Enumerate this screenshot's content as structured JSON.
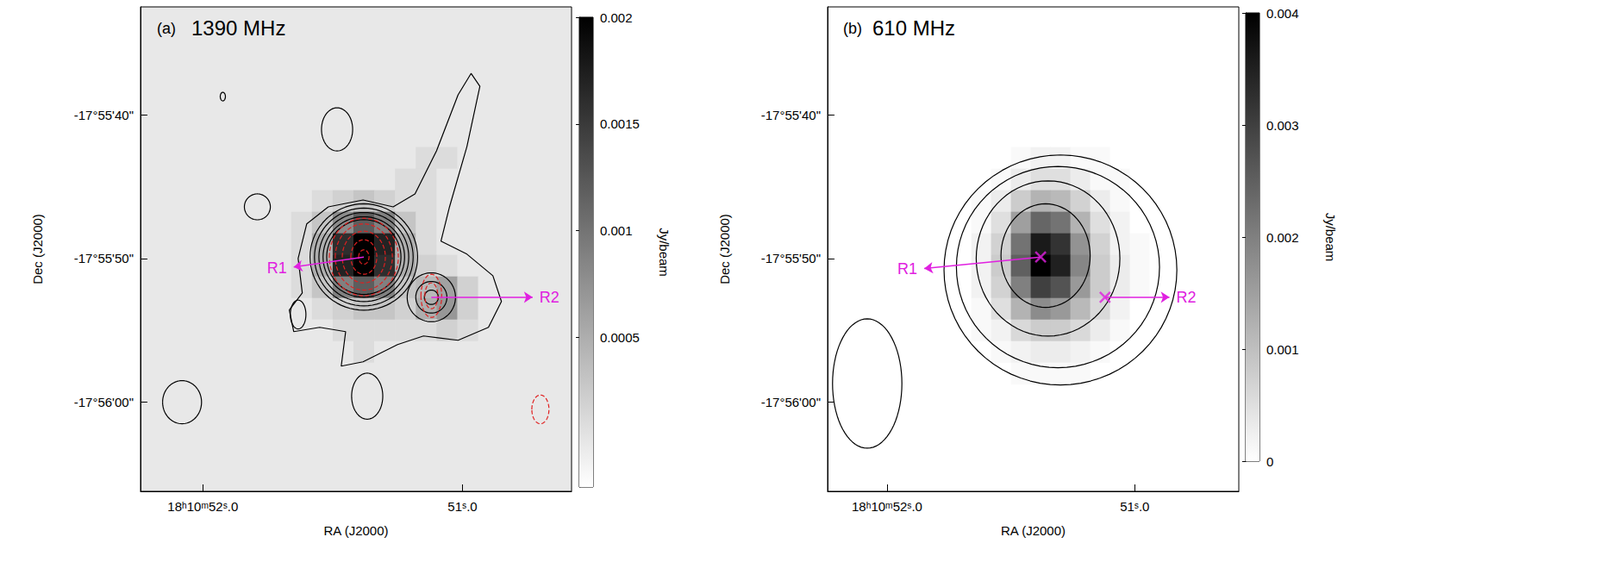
{
  "chart_data": [
    {
      "type": "contour",
      "panel_label": "(a)",
      "title": "1390 MHz",
      "x_label": "RA (J2000)",
      "y_label": "Dec (J2000)",
      "xlim": [
        52.24,
        50.58
      ],
      "xticks": [
        {
          "value": 52.0,
          "label": "18ʰ10ᵐ52ˢ.0"
        },
        {
          "value": 51.0,
          "label": "51ˢ.0"
        }
      ],
      "ylim": [
        -66.2,
        -32.5
      ],
      "yticks": [
        {
          "value": -40,
          "label": "-17°55'40\""
        },
        {
          "value": -50,
          "label": "-17°55'50\""
        },
        {
          "value": -60,
          "label": "-17°56'00\""
        }
      ],
      "image": {
        "ra": [
          51.7,
          51.62,
          51.54,
          51.46,
          51.38,
          51.3,
          51.22,
          51.14,
          51.06,
          50.98,
          50.9
        ],
        "dec": [
          -43,
          -44.5,
          -46,
          -47.5,
          -49,
          -50.5,
          -52,
          -53.5,
          -55,
          -56.5,
          -58
        ],
        "cell": [
          0.08,
          1.5
        ],
        "values": [
          [
            0,
            0,
            0,
            0,
            0,
            0,
            0,
            0.0001,
            0.0001,
            0,
            0
          ],
          [
            0,
            0,
            0,
            0,
            0,
            0,
            0.0001,
            0.0001,
            0,
            0,
            0
          ],
          [
            0,
            0,
            0.0001,
            0.0002,
            0.0003,
            0.0002,
            0.0001,
            0.0001,
            0,
            0,
            0
          ],
          [
            0,
            0.0001,
            0.0003,
            0.0008,
            0.0012,
            0.0009,
            0.0003,
            0.0001,
            0,
            0,
            0
          ],
          [
            0,
            0.0001,
            0.0005,
            0.0016,
            0.002,
            0.0017,
            0.0005,
            0.0001,
            0,
            0,
            0
          ],
          [
            0,
            0.0001,
            0.0005,
            0.0017,
            0.002,
            0.0016,
            0.0005,
            0.0002,
            0.0001,
            0,
            0
          ],
          [
            0,
            0.0001,
            0.0003,
            0.0009,
            0.0012,
            0.0009,
            0.0003,
            0.0004,
            0.0006,
            0.0002,
            0
          ],
          [
            0,
            0,
            0.0001,
            0.0002,
            0.0003,
            0.0003,
            0.0002,
            0.0005,
            0.0007,
            0.0002,
            0
          ],
          [
            0,
            0,
            0,
            0.0001,
            0.0001,
            0.0001,
            0.0001,
            0.0001,
            0.0002,
            0.0001,
            0
          ],
          [
            0,
            0,
            0,
            0,
            0.0001,
            0,
            0,
            0,
            0,
            0,
            0
          ],
          [
            0,
            0,
            0,
            0,
            0,
            0,
            0,
            0,
            0,
            0,
            0
          ]
        ]
      },
      "colorbar": {
        "label": "Jy/beam",
        "range": [
          -0.0002,
          0.002
        ],
        "ticks": [
          0.0005,
          0.001,
          0.0015,
          0.002
        ]
      },
      "contours": [
        {
          "color": "#000000",
          "line_style": "solid",
          "ellipses": [
            [
              51.38,
              -49.9,
              0.207,
              3.7
            ],
            [
              51.38,
              -49.9,
              0.19,
              3.4
            ],
            [
              51.38,
              -49.9,
              0.173,
              3.1
            ],
            [
              51.38,
              -49.9,
              0.157,
              2.8
            ],
            [
              51.38,
              -49.9,
              0.143,
              2.6
            ],
            [
              51.12,
              -52.7,
              0.093,
              1.7
            ],
            [
              51.12,
              -52.7,
              0.06,
              1.1
            ],
            [
              51.12,
              -52.7,
              0.027,
              0.5
            ],
            [
              51.923,
              -38.74,
              0.01,
              0.3
            ],
            [
              51.483,
              -41.02,
              0.06,
              1.5
            ],
            [
              51.79,
              -46.41,
              0.05,
              0.9
            ],
            [
              51.633,
              -53.9,
              0.03,
              1.0
            ],
            [
              51.367,
              -59.58,
              0.06,
              1.6
            ]
          ],
          "polygons": [
            [
              [
                51.517,
                -46.41
              ],
              [
                51.383,
                -45.93
              ],
              [
                51.267,
                -46.41
              ],
              [
                51.183,
                -45.51
              ],
              [
                51.1,
                -42.51
              ],
              [
                51.017,
                -38.62
              ],
              [
                50.967,
                -37.13
              ],
              [
                50.933,
                -38.02
              ],
              [
                50.983,
                -42.22
              ],
              [
                51.05,
                -46.41
              ],
              [
                51.083,
                -48.8
              ],
              [
                50.983,
                -49.7
              ],
              [
                50.883,
                -51.2
              ],
              [
                50.85,
                -52.99
              ],
              [
                50.9,
                -54.79
              ],
              [
                51.017,
                -55.69
              ],
              [
                51.15,
                -55.39
              ],
              [
                51.25,
                -55.99
              ],
              [
                51.383,
                -57.19
              ],
              [
                51.467,
                -57.49
              ],
              [
                51.45,
                -55.09
              ],
              [
                51.55,
                -54.79
              ],
              [
                51.65,
                -55.09
              ],
              [
                51.667,
                -53.59
              ],
              [
                51.617,
                -52.4
              ],
              [
                51.633,
                -50.0
              ],
              [
                51.6,
                -47.6
              ]
            ]
          ]
        },
        {
          "color": "#e02020",
          "line_style": "dashed",
          "ellipses": [
            [
              51.38,
              -49.9,
              0.133,
              2.7
            ],
            [
              51.38,
              -49.9,
              0.11,
              2.3
            ],
            [
              51.38,
              -49.9,
              0.083,
              1.8
            ],
            [
              51.38,
              -49.9,
              0.05,
              1.2
            ],
            [
              51.38,
              -49.9,
              0.02,
              0.5
            ],
            [
              51.12,
              -52.6,
              0.04,
              1.5
            ],
            [
              51.12,
              -52.6,
              0.025,
              0.9
            ]
          ],
          "polygons": []
        }
      ],
      "beams": [
        {
          "color": "#000000",
          "line_style": "solid",
          "ellipse": [
            52.08,
            -60.0,
            0.075,
            1.5
          ]
        },
        {
          "color": "#e02020",
          "line_style": "dashed",
          "ellipse": [
            50.7,
            -60.5,
            0.033,
            1.0
          ]
        }
      ],
      "sources": [
        {
          "name": "R1",
          "color": "#e020e0",
          "marker": "none",
          "position": [
            51.38,
            -49.9
          ],
          "arrow_end": [
            51.65,
            -50.6
          ]
        },
        {
          "name": "R2",
          "color": "#e020e0",
          "marker": "none",
          "position": [
            51.12,
            -52.7
          ],
          "arrow_end": [
            50.73,
            -52.7
          ]
        }
      ]
    },
    {
      "type": "contour",
      "panel_label": "(b)",
      "title": "610 MHz",
      "x_label": "RA (J2000)",
      "y_label": "Dec (J2000)",
      "xlim": [
        52.24,
        50.58
      ],
      "xticks": [
        {
          "value": 52.0,
          "label": "18ʰ10ᵐ52ˢ.0"
        },
        {
          "value": 51.0,
          "label": "51ˢ.0"
        }
      ],
      "ylim": [
        -66.2,
        -32.5
      ],
      "yticks": [
        {
          "value": -40,
          "label": "-17°55'40\""
        },
        {
          "value": -50,
          "label": "-17°55'50\""
        },
        {
          "value": -60,
          "label": "-17°56'00\""
        }
      ],
      "image": {
        "ra": [
          51.7,
          51.62,
          51.54,
          51.46,
          51.38,
          51.3,
          51.22,
          51.14,
          51.06,
          50.98,
          50.9
        ],
        "dec": [
          -43,
          -44.5,
          -46,
          -47.5,
          -49,
          -50.5,
          -52,
          -53.5,
          -55,
          -56.5,
          -58
        ],
        "cell": [
          0.08,
          1.5
        ],
        "values": [
          [
            0,
            0,
            0,
            0.0001,
            0.0002,
            0.0002,
            0.0001,
            0.0001,
            0,
            0,
            0
          ],
          [
            0,
            0,
            0.0001,
            0.0003,
            0.0005,
            0.0005,
            0.0003,
            0.0001,
            0.0001,
            0,
            0
          ],
          [
            0,
            0.0001,
            0.0003,
            0.0008,
            0.0012,
            0.0011,
            0.0007,
            0.0003,
            0.0001,
            0,
            0
          ],
          [
            0,
            0.0001,
            0.0005,
            0.0015,
            0.0024,
            0.0022,
            0.0012,
            0.0005,
            0.0002,
            0,
            0
          ],
          [
            0,
            0.0002,
            0.0007,
            0.0022,
            0.0036,
            0.0032,
            0.0017,
            0.0007,
            0.0002,
            0.0001,
            0
          ],
          [
            0,
            0.0002,
            0.0008,
            0.0025,
            0.004,
            0.0035,
            0.0019,
            0.0008,
            0.0003,
            0.0001,
            0
          ],
          [
            0,
            0.0002,
            0.0007,
            0.002,
            0.003,
            0.0027,
            0.0016,
            0.0008,
            0.0003,
            0.0001,
            0
          ],
          [
            0,
            0.0001,
            0.0005,
            0.0012,
            0.0018,
            0.0016,
            0.0011,
            0.0006,
            0.0002,
            0,
            0
          ],
          [
            0,
            0.0001,
            0.0002,
            0.0006,
            0.0008,
            0.0008,
            0.0006,
            0.0003,
            0.0001,
            0,
            0
          ],
          [
            0,
            0,
            0.0001,
            0.0002,
            0.0003,
            0.0003,
            0.0002,
            0.0001,
            0,
            0,
            0
          ],
          [
            0,
            0,
            0,
            0.0001,
            0.0001,
            0.0001,
            0.0001,
            0,
            0,
            0,
            0
          ]
        ]
      },
      "colorbar": {
        "label": "Jy/beam",
        "range": [
          0,
          0.004
        ],
        "ticks": [
          0,
          0.001,
          0.002,
          0.003,
          0.004
        ]
      },
      "contours": [
        {
          "color": "#000000",
          "line_style": "solid",
          "ellipses": [
            [
              51.3,
              -50.8,
              0.47,
              8.0
            ],
            [
              51.31,
              -50.6,
              0.41,
              7.0
            ],
            [
              51.35,
              -50.0,
              0.29,
              5.4
            ],
            [
              51.36,
              -49.8,
              0.18,
              3.6
            ]
          ],
          "polygons": []
        }
      ],
      "beams": [
        {
          "color": "#000000",
          "line_style": "solid",
          "ellipse": [
            52.08,
            -58.7,
            0.14,
            4.5
          ]
        }
      ],
      "sources": [
        {
          "name": "R1",
          "color": "#e020e0",
          "marker": "cross",
          "position": [
            51.38,
            -49.9
          ],
          "arrow_end": [
            51.85,
            -50.7
          ]
        },
        {
          "name": "R2",
          "color": "#e020e0",
          "marker": "cross",
          "position": [
            51.12,
            -52.7
          ],
          "arrow_end": [
            50.86,
            -52.7
          ]
        }
      ]
    }
  ]
}
